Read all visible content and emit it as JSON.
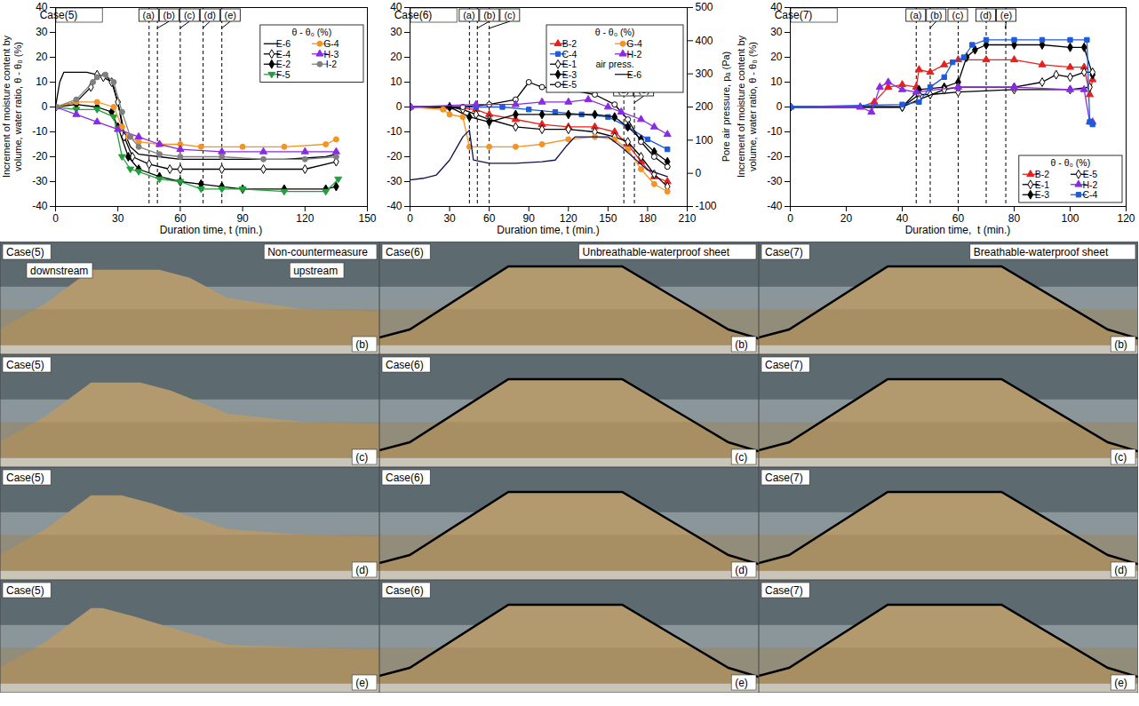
{
  "chart_data": [
    {
      "type": "line",
      "title": "Case(5)",
      "x_label": "Duration time, t (min.)",
      "y_label": "Increment of moisture content by volume, water ratio, θ - θ₀ (%)",
      "xlim": [
        0,
        150
      ],
      "xticks": [
        0,
        30,
        60,
        90,
        120,
        150
      ],
      "ylim": [
        -40,
        40
      ],
      "yticks": [
        -40,
        -30,
        -20,
        -10,
        0,
        10,
        20,
        30,
        40
      ],
      "legend": "upper right",
      "legend_title": "θ - θ₀ (%)",
      "events": [
        {
          "label": "(a)",
          "x": 45
        },
        {
          "label": "(b)",
          "x": 49
        },
        {
          "label": "(c)",
          "x": 60
        },
        {
          "label": "(d)",
          "x": 71
        },
        {
          "label": "(e)",
          "x": 80
        }
      ],
      "series": [
        {
          "name": "E-6",
          "color": "#000000",
          "marker": "none",
          "x": [
            0,
            2,
            4,
            15,
            20,
            25,
            28,
            31,
            33,
            36,
            40,
            50,
            60,
            70,
            90,
            110,
            130,
            135
          ],
          "values": [
            0,
            10,
            14,
            14,
            13,
            12,
            8,
            -2,
            -10,
            -16,
            -19,
            -20,
            -21,
            -21,
            -21,
            -21,
            -20,
            -19
          ]
        },
        {
          "name": "E-4",
          "color": "#000000",
          "marker": "diamond-open",
          "x": [
            0,
            10,
            17,
            20,
            23,
            27,
            30,
            33,
            37,
            45,
            55,
            60,
            80,
            100,
            120,
            135
          ],
          "values": [
            0,
            2,
            8,
            13,
            12,
            10,
            2,
            -12,
            -20,
            -23,
            -25,
            -25,
            -25,
            -25,
            -25,
            -22
          ]
        },
        {
          "name": "E-2",
          "color": "#000000",
          "marker": "diamond",
          "x": [
            0,
            10,
            20,
            27,
            30,
            35,
            40,
            50,
            60,
            70,
            80,
            90,
            110,
            130,
            135
          ],
          "values": [
            0,
            1,
            0,
            -2,
            -8,
            -20,
            -25,
            -28,
            -30,
            -31,
            -32,
            -33,
            -33,
            -33,
            -32
          ]
        },
        {
          "name": "F-5",
          "color": "#22a03a",
          "marker": "triangle-down",
          "x": [
            0,
            10,
            20,
            28,
            32,
            36,
            40,
            50,
            60,
            70,
            80,
            90,
            110,
            130,
            136
          ],
          "values": [
            0,
            -1,
            -1,
            -4,
            -20,
            -25,
            -26,
            -29,
            -30,
            -33,
            -33,
            -33,
            -34,
            -34,
            -29
          ]
        },
        {
          "name": "G-4",
          "color": "#f39423",
          "marker": "circle",
          "x": [
            0,
            10,
            20,
            28,
            32,
            35,
            40,
            50,
            60,
            70,
            90,
            110,
            130,
            135
          ],
          "values": [
            0,
            2,
            2,
            0,
            -8,
            -12,
            -14,
            -15,
            -15,
            -16,
            -16,
            -16,
            -15,
            -13
          ]
        },
        {
          "name": "H-3",
          "color": "#8a2be2",
          "marker": "triangle",
          "x": [
            0,
            10,
            20,
            30,
            40,
            50,
            60,
            80,
            100,
            120,
            135
          ],
          "values": [
            0,
            -3,
            -6,
            -9,
            -12,
            -15,
            -17,
            -18,
            -18,
            -18,
            -18
          ]
        },
        {
          "name": "I-2",
          "color": "#808080",
          "marker": "circle",
          "x": [
            0,
            10,
            18,
            20,
            24,
            28,
            32,
            36,
            40,
            50,
            60,
            80,
            100,
            120,
            135
          ],
          "values": [
            0,
            3,
            10,
            12,
            13,
            10,
            -2,
            -12,
            -16,
            -19,
            -20,
            -20,
            -21,
            -21,
            -20
          ]
        }
      ]
    },
    {
      "type": "line",
      "title": "Case(6)",
      "x_label": "Duration time, t (min.)",
      "xlim": [
        0,
        210
      ],
      "xticks": [
        0,
        30,
        60,
        90,
        120,
        150,
        180,
        210
      ],
      "ylim": [
        -40,
        40
      ],
      "yticks": [
        -40,
        -30,
        -20,
        -10,
        0,
        10,
        20,
        30,
        40
      ],
      "y2lim": [
        -100,
        500
      ],
      "y2ticks": [
        -100,
        0,
        100,
        200,
        300,
        400,
        500
      ],
      "y2_label": "Pore air pressure, pₐ (Pa)",
      "legend": "upper right",
      "legend_title": "θ - θ₀ (%)",
      "y2_legend_title": "air press.",
      "events": [
        {
          "label": "(a)",
          "x": 45
        },
        {
          "label": "(b)",
          "x": 51
        },
        {
          "label": "(c)",
          "x": 60
        },
        {
          "label": "(d)",
          "x": 162,
          "y": 10
        },
        {
          "label": "(e)",
          "x": 170,
          "y": 10
        }
      ],
      "series": [
        {
          "name": "B-2",
          "color": "#e8201c",
          "marker": "triangle",
          "x": [
            0,
            30,
            50,
            60,
            80,
            100,
            120,
            140,
            155,
            165,
            175,
            185,
            195
          ],
          "values": [
            0,
            0,
            -1,
            -3,
            -5,
            -7,
            -8,
            -8,
            -10,
            -15,
            -22,
            -28,
            -30
          ]
        },
        {
          "name": "C-4",
          "color": "#1e5adc",
          "marker": "square",
          "x": [
            0,
            50,
            70,
            90,
            110,
            130,
            150,
            165,
            180,
            195
          ],
          "values": [
            0,
            0,
            0,
            -1,
            -2,
            -3,
            -4,
            -8,
            -13,
            -17
          ]
        },
        {
          "name": "E-1",
          "color": "#000000",
          "marker": "diamond-open",
          "x": [
            0,
            30,
            40,
            50,
            60,
            80,
            100,
            120,
            140,
            155,
            165,
            175,
            185,
            195
          ],
          "values": [
            0,
            0,
            -1,
            -3,
            -5,
            -8,
            -9,
            -9,
            -10,
            -12,
            -14,
            -20,
            -27,
            -32
          ]
        },
        {
          "name": "E-3",
          "color": "#000000",
          "marker": "diamond",
          "x": [
            0,
            30,
            45,
            60,
            80,
            100,
            120,
            140,
            155,
            165,
            175,
            185,
            195
          ],
          "values": [
            0,
            0,
            -4,
            -6,
            -3,
            -3,
            -3,
            -3,
            -4,
            -8,
            -13,
            -18,
            -22
          ]
        },
        {
          "name": "E-5",
          "color": "#000000",
          "marker": "circle-open",
          "x": [
            0,
            40,
            60,
            80,
            90,
            100,
            120,
            140,
            155,
            165,
            175,
            185,
            195
          ],
          "values": [
            0,
            0,
            1,
            3,
            10,
            8,
            7,
            5,
            1,
            -5,
            -14,
            -20,
            -24
          ]
        },
        {
          "name": "G-4",
          "color": "#f39423",
          "marker": "circle",
          "x": [
            0,
            25,
            30,
            40,
            45,
            60,
            80,
            100,
            120,
            140,
            155,
            165,
            175,
            185,
            195
          ],
          "values": [
            0,
            -1,
            -3,
            -4,
            -16,
            -16,
            -16,
            -15,
            -13,
            -12,
            -13,
            -17,
            -25,
            -31,
            -34
          ]
        },
        {
          "name": "H-2",
          "color": "#8a2be2",
          "marker": "triangle",
          "x": [
            0,
            50,
            80,
            100,
            120,
            135,
            150,
            160,
            175,
            185,
            195
          ],
          "values": [
            0,
            1,
            1,
            2,
            2,
            3,
            0,
            -2,
            -5,
            -8,
            -11
          ]
        },
        {
          "name": "E-6",
          "color": "#101050",
          "marker": "none",
          "axis": "y2",
          "x": [
            0,
            10,
            20,
            30,
            40,
            45,
            48,
            60,
            80,
            100,
            110,
            118,
            125,
            150,
            160,
            170,
            180,
            195
          ],
          "values": [
            -20,
            -15,
            -5,
            40,
            110,
            130,
            40,
            30,
            30,
            35,
            40,
            80,
            110,
            110,
            80,
            45,
            10,
            -10
          ]
        }
      ]
    },
    {
      "type": "line",
      "title": "Case(7)",
      "x_label": "Duration time,  t (min.)",
      "y_label": "Increment of moisture content by volume, water ratio, θ - θ₀ (%)",
      "xlim": [
        0,
        120
      ],
      "xticks": [
        0,
        20,
        40,
        60,
        80,
        100,
        120
      ],
      "ylim": [
        -40,
        40
      ],
      "yticks": [
        -40,
        -30,
        -20,
        -10,
        0,
        10,
        20,
        30,
        40
      ],
      "legend": "lower right",
      "legend_title": "θ - θ₀ (%)",
      "events": [
        {
          "label": "(a)",
          "x": 45
        },
        {
          "label": "(b)",
          "x": 50
        },
        {
          "label": "(c)",
          "x": 60
        },
        {
          "label": "(d)",
          "x": 70
        },
        {
          "label": "(e)",
          "x": 77
        }
      ],
      "series": [
        {
          "name": "B-2",
          "color": "#e8201c",
          "marker": "triangle",
          "x": [
            0,
            25,
            30,
            35,
            40,
            45,
            46,
            50,
            55,
            60,
            70,
            80,
            90,
            100,
            105,
            107,
            108
          ],
          "values": [
            0,
            0,
            2,
            8,
            9,
            8,
            15,
            14,
            17,
            19,
            19,
            19,
            17,
            16,
            16,
            5,
            11
          ]
        },
        {
          "name": "E-1",
          "color": "#000000",
          "marker": "diamond-open",
          "x": [
            0,
            40,
            46,
            50,
            60,
            80,
            100,
            107
          ],
          "values": [
            0,
            0,
            5,
            5,
            6,
            7,
            7,
            8
          ]
        },
        {
          "name": "E-3",
          "color": "#000000",
          "marker": "diamond",
          "x": [
            0,
            40,
            46,
            55,
            60,
            63,
            66,
            70,
            80,
            90,
            100,
            105,
            108
          ],
          "values": [
            0,
            0,
            7,
            8,
            10,
            20,
            23,
            25,
            25,
            25,
            24,
            24,
            13
          ]
        },
        {
          "name": "E-5",
          "color": "#000000",
          "marker": "diamond-open",
          "x": [
            0,
            40,
            46,
            55,
            60,
            80,
            90,
            95,
            100,
            105,
            108
          ],
          "values": [
            0,
            0,
            3,
            7,
            8,
            8,
            10,
            13,
            12,
            14,
            14
          ]
        },
        {
          "name": "H-2",
          "color": "#8a2be2",
          "marker": "triangle",
          "x": [
            0,
            25,
            29,
            32,
            35,
            40,
            45,
            60,
            80,
            100,
            105,
            107,
            108
          ],
          "values": [
            0,
            0,
            -2,
            8,
            10,
            7,
            6,
            8,
            8,
            7,
            7,
            -6,
            -6
          ]
        },
        {
          "name": "C-4",
          "color": "#1e5adc",
          "marker": "square",
          "x": [
            0,
            40,
            46,
            50,
            55,
            58,
            62,
            65,
            70,
            80,
            90,
            100,
            106,
            107,
            108
          ],
          "values": [
            0,
            1,
            2,
            8,
            12,
            18,
            20,
            25,
            27,
            27,
            27,
            27,
            27,
            -6,
            -7
          ]
        }
      ]
    }
  ],
  "photos": [
    {
      "case": "Case(5)",
      "title": "Non-countermeasure",
      "labels": [
        "downstream",
        "upstream"
      ],
      "frames": [
        "(b)",
        "(c)",
        "(d)",
        "(e)"
      ]
    },
    {
      "case": "Case(6)",
      "title": "Unbreathable-waterproof sheet",
      "frames": [
        "(b)",
        "(c)",
        "(d)",
        "(e)"
      ]
    },
    {
      "case": "Case(7)",
      "title": "Breathable-waterproof sheet",
      "frames": [
        "(b)",
        "(c)",
        "(d)",
        "(e)"
      ]
    }
  ]
}
